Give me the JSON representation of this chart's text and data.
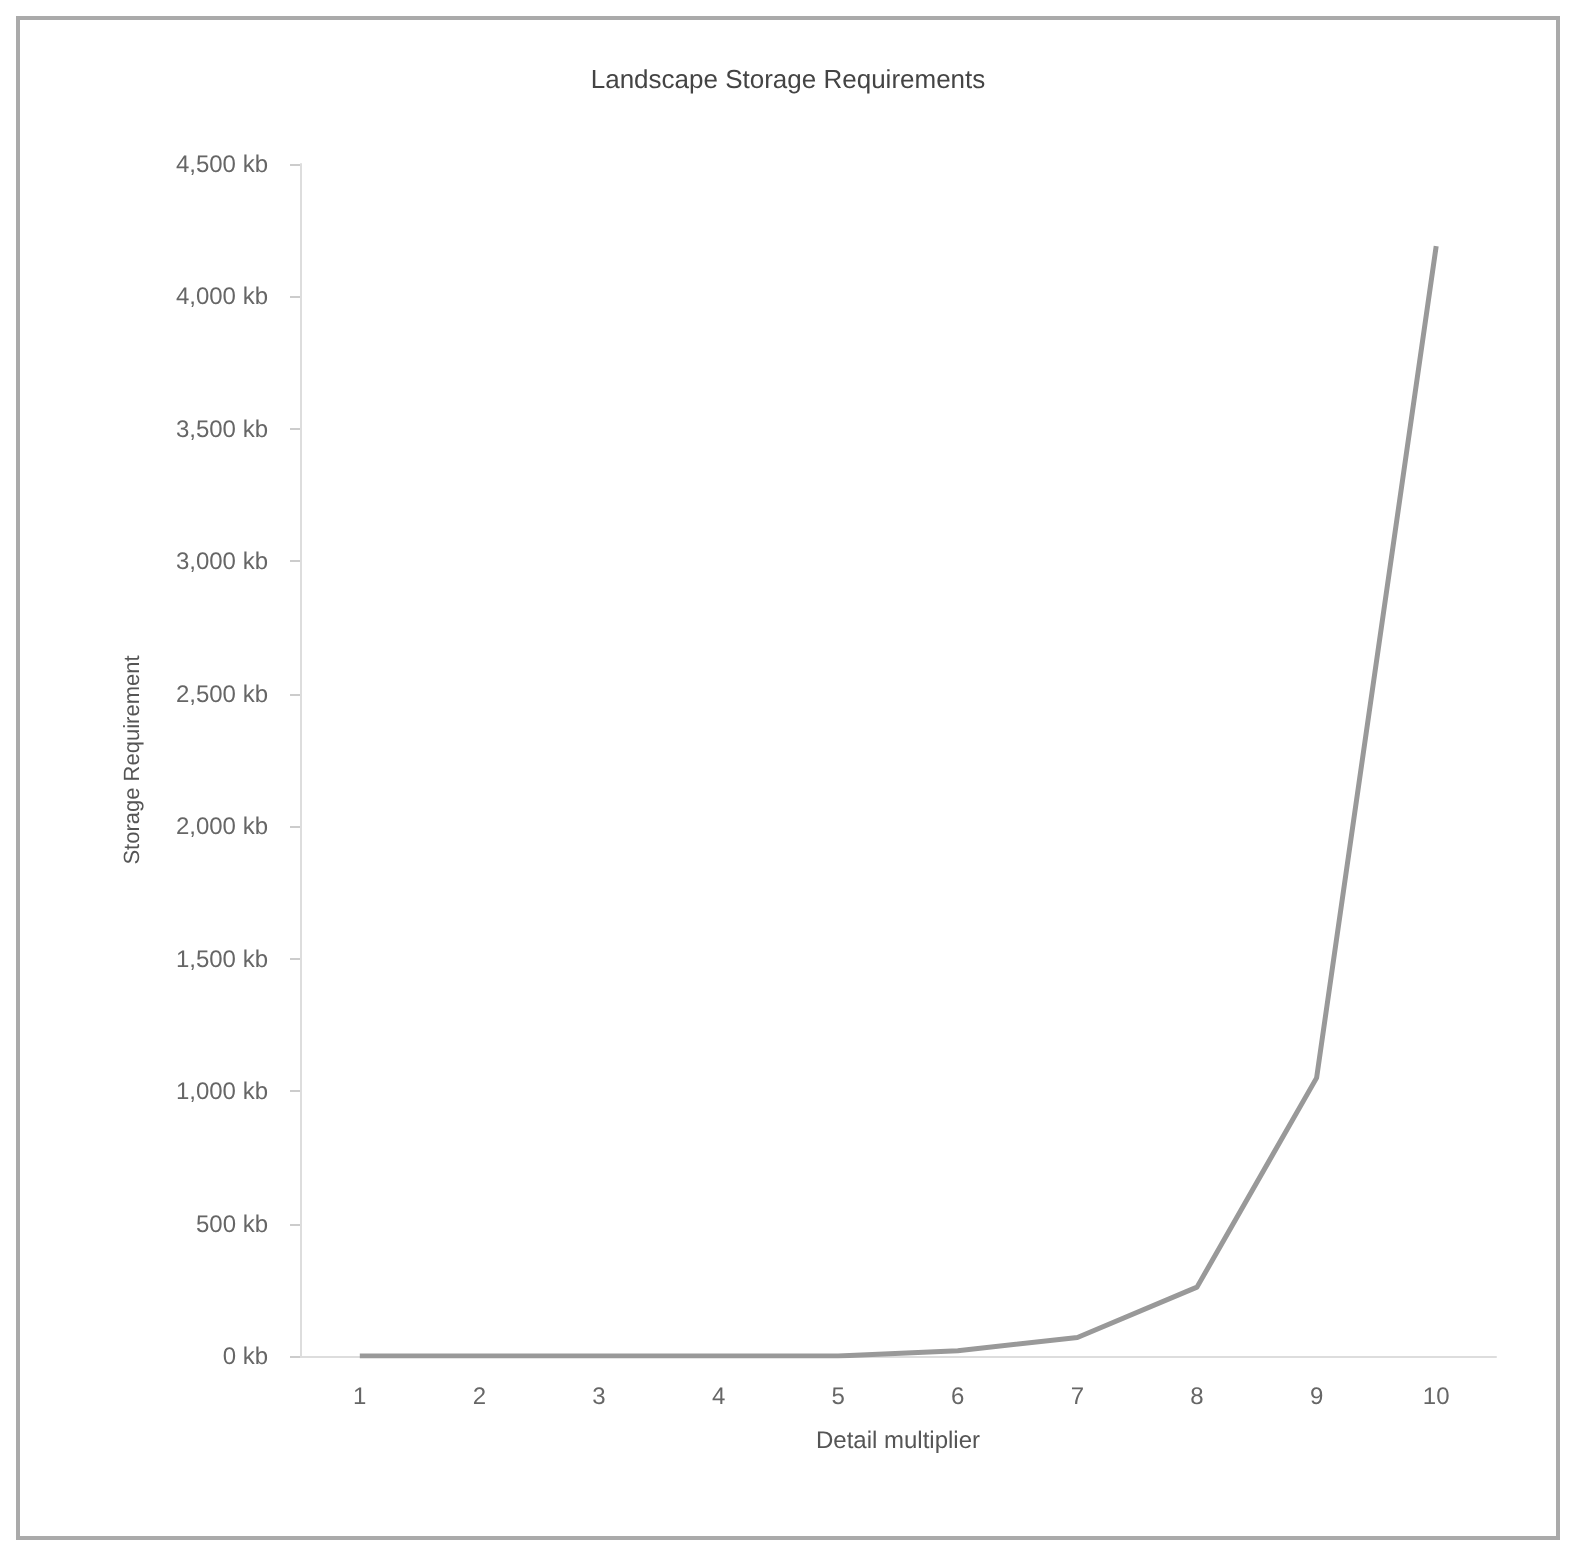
{
  "chart_data": {
    "type": "line",
    "title": "Landscape Storage Requirements",
    "xlabel": "Detail multiplier",
    "ylabel": "Storage Requirement",
    "categories": [
      "1",
      "2",
      "3",
      "4",
      "5",
      "6",
      "7",
      "8",
      "9",
      "10"
    ],
    "series": [
      {
        "color": "#999999",
        "values": [
          0,
          0,
          0,
          0,
          0,
          20,
          70,
          260,
          1050,
          4190
        ]
      }
    ],
    "ylim": [
      0,
      4500
    ],
    "yticks": [
      {
        "value": 0,
        "label": "0 kb"
      },
      {
        "value": 500,
        "label": "500 kb"
      },
      {
        "value": 1000,
        "label": "1,000 kb"
      },
      {
        "value": 1500,
        "label": "1,500 kb"
      },
      {
        "value": 2000,
        "label": "2,000 kb"
      },
      {
        "value": 2500,
        "label": "2,500 kb"
      },
      {
        "value": 3000,
        "label": "3,000 kb"
      },
      {
        "value": 3500,
        "label": "3,500 kb"
      },
      {
        "value": 4000,
        "label": "4,000 kb"
      },
      {
        "value": 4500,
        "label": "4,500 kb"
      }
    ],
    "grid": false,
    "marker": "none",
    "line_style": "solid"
  }
}
